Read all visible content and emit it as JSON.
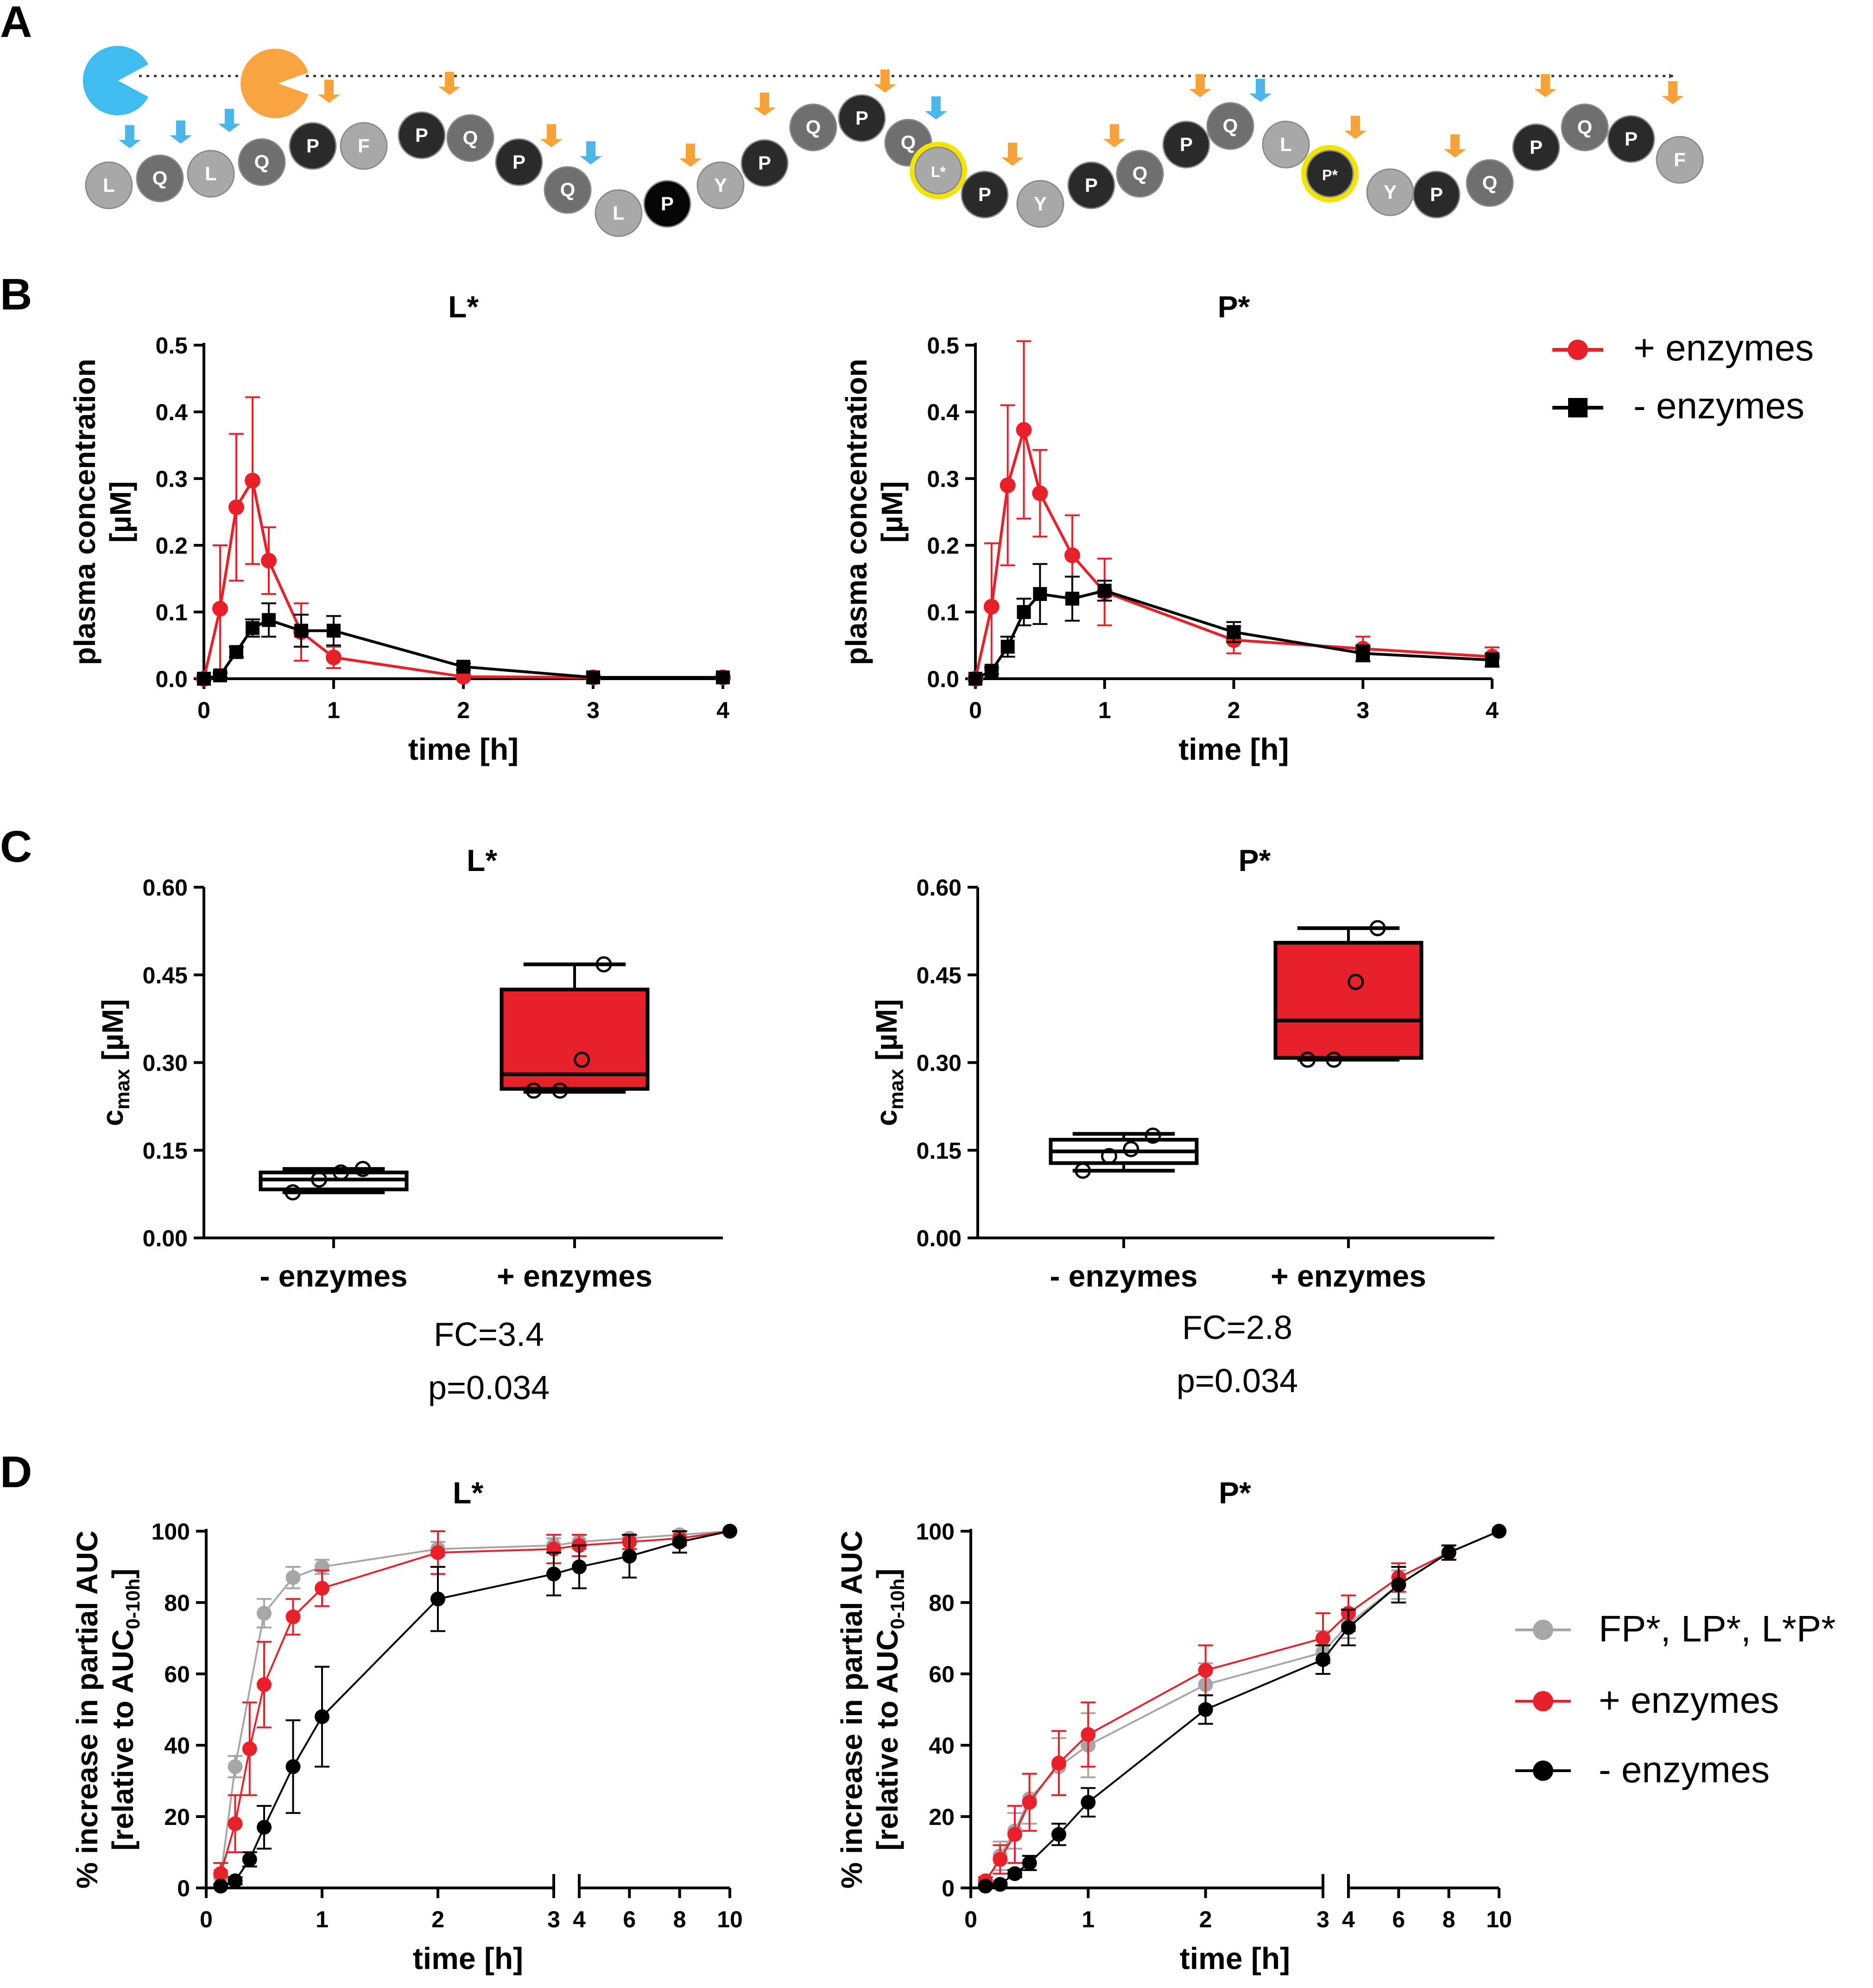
{
  "panel_labels": {
    "a": "A",
    "b": "B",
    "c": "C",
    "d": "D"
  },
  "panel_a": {
    "residues": [
      "L",
      "Q",
      "L",
      "Q",
      "P",
      "F",
      "P",
      "Q",
      "P",
      "Q",
      "L",
      "P",
      "Y",
      "P",
      "Q",
      "P",
      "Q",
      "L*",
      "P",
      "Y",
      "P",
      "Q",
      "P",
      "Q",
      "L",
      "P*",
      "Y",
      "P",
      "Q",
      "P",
      "Q",
      "P",
      "F"
    ],
    "colors": {
      "p": "#2b2b2b",
      "q": "#6f6f6f",
      "lyf": "#a9a9a9",
      "p_black": "#050505",
      "cleave_orange": "#f7a33a",
      "cleave_blue": "#4db6e8",
      "highlight": "#f2e400",
      "enzyme_blue": "#40bdf0",
      "enzyme_orange": "#f8a541"
    }
  },
  "legend_b": {
    "items": [
      "+ enzymes",
      "- enzymes"
    ]
  },
  "legend_d": {
    "items": [
      "FP*, LP*, L*P*",
      "+ enzymes",
      "- enzymes"
    ]
  },
  "colors": {
    "red": "#e8202a",
    "black": "#000000",
    "gray": "#a6a6a6",
    "box_red": "#e8202a"
  },
  "chart_data": [
    {
      "id": "B-L",
      "type": "line",
      "title": "L*",
      "xlabel": "time [h]",
      "ylabel": [
        "plasma concentration",
        "[µM]"
      ],
      "xlim": [
        0,
        4
      ],
      "ylim": [
        0,
        0.5
      ],
      "xticks": [
        "0",
        "1",
        "2",
        "3",
        "4"
      ],
      "yticks": [
        "0.0",
        "0.1",
        "0.2",
        "0.3",
        "0.4",
        "0.5"
      ],
      "series": [
        {
          "name": "+ enzymes",
          "x": [
            0,
            0.125,
            0.25,
            0.375,
            0.5,
            0.75,
            1,
            2,
            3,
            4
          ],
          "y": [
            0,
            0.105,
            0.257,
            0.297,
            0.177,
            0.07,
            0.032,
            0.003,
            0.002,
            0.002
          ],
          "err": [
            0,
            0.095,
            0.11,
            0.125,
            0.05,
            0.043,
            0.016,
            0,
            0,
            0
          ]
        },
        {
          "name": "- enzymes",
          "x": [
            0,
            0.125,
            0.25,
            0.375,
            0.5,
            0.75,
            1,
            2,
            3,
            4
          ],
          "y": [
            0,
            0.005,
            0.04,
            0.076,
            0.088,
            0.072,
            0.072,
            0.018,
            0.002,
            0.002
          ],
          "err": [
            0,
            0.003,
            0.008,
            0.013,
            0.025,
            0.024,
            0.022,
            0.005,
            0,
            0
          ]
        }
      ]
    },
    {
      "id": "B-P",
      "type": "line",
      "title": "P*",
      "xlabel": "time [h]",
      "ylabel": [
        "plasma concentration",
        "[µM]"
      ],
      "xlim": [
        0,
        4
      ],
      "ylim": [
        0,
        0.5
      ],
      "xticks": [
        "0",
        "1",
        "2",
        "3",
        "4"
      ],
      "yticks": [
        "0.0",
        "0.1",
        "0.2",
        "0.3",
        "0.4",
        "0.5"
      ],
      "series": [
        {
          "name": "+ enzymes",
          "x": [
            0,
            0.125,
            0.25,
            0.375,
            0.5,
            0.75,
            1,
            2,
            3,
            4
          ],
          "y": [
            0,
            0.108,
            0.29,
            0.373,
            0.278,
            0.185,
            0.13,
            0.058,
            0.045,
            0.033
          ],
          "err": [
            0,
            0.095,
            0.12,
            0.133,
            0.065,
            0.06,
            0.05,
            0.02,
            0.018,
            0.014
          ]
        },
        {
          "name": "- enzymes",
          "x": [
            0,
            0.125,
            0.25,
            0.375,
            0.5,
            0.75,
            1,
            2,
            3,
            4
          ],
          "y": [
            0,
            0.012,
            0.048,
            0.1,
            0.127,
            0.12,
            0.132,
            0.07,
            0.038,
            0.028
          ],
          "err": [
            0,
            0.005,
            0.015,
            0.02,
            0.045,
            0.033,
            0.015,
            0.015,
            0.012,
            0.01
          ]
        }
      ]
    },
    {
      "id": "C-L",
      "type": "box",
      "title": "L*",
      "ylabel": "c",
      "ylabel_sub": "max",
      "ylabel_unit": " [µM]",
      "ylim": [
        0,
        0.6
      ],
      "yticks": [
        "0.00",
        "0.15",
        "0.30",
        "0.45",
        "0.60"
      ],
      "categories": [
        "- enzymes",
        "+ enzymes"
      ],
      "boxes": [
        {
          "min": 0.078,
          "q1": 0.083,
          "median": 0.1,
          "q3": 0.112,
          "max": 0.118,
          "points": [
            0.078,
            0.1,
            0.112,
            0.118
          ],
          "fill": "none"
        },
        {
          "min": 0.25,
          "q1": 0.255,
          "median": 0.28,
          "q3": 0.425,
          "max": 0.468,
          "points": [
            0.252,
            0.252,
            0.305,
            0.468
          ],
          "fill": "red"
        }
      ],
      "fc": "FC=3.4",
      "p": "p=0.034"
    },
    {
      "id": "C-P",
      "type": "box",
      "title": "P*",
      "ylabel": "c",
      "ylabel_sub": "max",
      "ylabel_unit": " [µM]",
      "ylim": [
        0,
        0.6
      ],
      "yticks": [
        "0.00",
        "0.15",
        "0.30",
        "0.45",
        "0.60"
      ],
      "categories": [
        "- enzymes",
        "+ enzymes"
      ],
      "boxes": [
        {
          "min": 0.115,
          "q1": 0.128,
          "median": 0.148,
          "q3": 0.168,
          "max": 0.178,
          "points": [
            0.115,
            0.14,
            0.152,
            0.175
          ],
          "fill": "none"
        },
        {
          "min": 0.305,
          "q1": 0.308,
          "median": 0.372,
          "q3": 0.505,
          "max": 0.53,
          "points": [
            0.305,
            0.305,
            0.438,
            0.53
          ],
          "fill": "red"
        }
      ],
      "fc": "FC=2.8",
      "p": "p=0.034"
    },
    {
      "id": "D-L",
      "type": "line",
      "title": "L*",
      "xlabel": "time [h]",
      "ylabel": [
        "% increase in partial  AUC",
        "[relative to  AUC"
      ],
      "ylabel_sub": "0-10h",
      "ylabel_end": "]",
      "segments": [
        {
          "xlim": [
            0,
            3
          ],
          "ticks": [
            "0",
            "1",
            "2",
            "3"
          ]
        },
        {
          "xlim": [
            4,
            10
          ],
          "ticks": [
            "4",
            "6",
            "8",
            "10"
          ]
        }
      ],
      "ylim": [
        0,
        100
      ],
      "yticks": [
        "0",
        "20",
        "40",
        "60",
        "80",
        "100"
      ],
      "series": [
        {
          "name": "FP*, LP*, L*P*",
          "x": [
            0.125,
            0.25,
            0.5,
            0.75,
            1,
            2,
            3,
            4,
            6,
            8,
            10
          ],
          "y": [
            3,
            34,
            77,
            87,
            90,
            95,
            96,
            97,
            98,
            99,
            100
          ],
          "err": [
            2,
            3,
            4,
            3,
            2,
            2,
            2,
            2,
            1,
            1,
            0
          ]
        },
        {
          "name": "+ enzymes",
          "x": [
            0.125,
            0.25,
            0.375,
            0.5,
            0.75,
            1,
            2,
            3,
            4,
            6,
            8,
            10
          ],
          "y": [
            4,
            18,
            39,
            57,
            76,
            84,
            94,
            95,
            96,
            97,
            98,
            100
          ],
          "err": [
            3,
            8,
            13,
            12,
            5,
            5,
            6,
            4,
            3,
            2,
            2,
            0
          ]
        },
        {
          "name": "- enzymes",
          "x": [
            0.125,
            0.25,
            0.375,
            0.5,
            0.75,
            1,
            2,
            3,
            4,
            6,
            8,
            10
          ],
          "y": [
            0.5,
            2,
            8,
            17,
            34,
            48,
            81,
            88,
            90,
            93,
            97,
            100
          ],
          "err": [
            0.5,
            1,
            2,
            6,
            13,
            14,
            9,
            6,
            6,
            6,
            3,
            0
          ]
        }
      ]
    },
    {
      "id": "D-P",
      "type": "line",
      "title": "P*",
      "xlabel": "time [h]",
      "ylabel": [
        "% increase in partial  AUC",
        "[relative to  AUC"
      ],
      "ylabel_sub": "0-10h",
      "ylabel_end": "]",
      "segments": [
        {
          "xlim": [
            0,
            3
          ],
          "ticks": [
            "0",
            "1",
            "2",
            "3"
          ]
        },
        {
          "xlim": [
            4,
            10
          ],
          "ticks": [
            "4",
            "6",
            "8",
            "10"
          ]
        }
      ],
      "ylim": [
        0,
        100
      ],
      "yticks": [
        "0",
        "20",
        "40",
        "60",
        "80",
        "100"
      ],
      "series": [
        {
          "name": "FP*, LP*, L*P*",
          "x": [
            0.125,
            0.25,
            0.375,
            0.5,
            0.75,
            1,
            2,
            3,
            4,
            6,
            8,
            10
          ],
          "y": [
            1,
            9,
            16,
            25,
            34,
            40,
            57,
            66,
            74,
            85,
            94,
            100
          ],
          "err": [
            1,
            4,
            5,
            7,
            8,
            9,
            6,
            6,
            4,
            4,
            2,
            0
          ]
        },
        {
          "name": "+ enzymes",
          "x": [
            0.125,
            0.25,
            0.375,
            0.5,
            0.75,
            1,
            2,
            3,
            4,
            6,
            8,
            10
          ],
          "y": [
            2,
            8,
            15,
            24,
            35,
            43,
            61,
            70,
            77,
            87,
            94,
            100
          ],
          "err": [
            1,
            4,
            8,
            8,
            9,
            9,
            7,
            7,
            5,
            4,
            2,
            0
          ]
        },
        {
          "name": "- enzymes",
          "x": [
            0.125,
            0.25,
            0.375,
            0.5,
            0.75,
            1,
            2,
            3,
            4,
            6,
            8,
            10
          ],
          "y": [
            0.5,
            1,
            4,
            7,
            15,
            24,
            50,
            64,
            73,
            85,
            94,
            100
          ],
          "err": [
            0.5,
            0.5,
            1,
            2,
            3,
            4,
            4,
            4,
            5,
            5,
            2,
            0
          ]
        }
      ]
    }
  ]
}
